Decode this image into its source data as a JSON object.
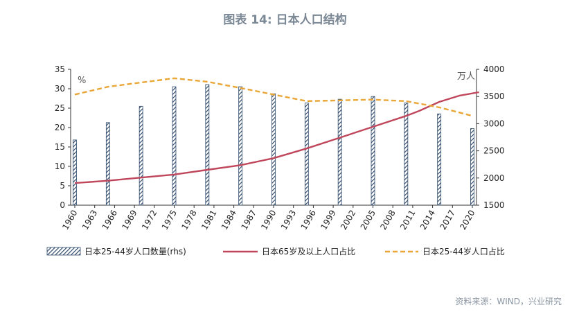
{
  "title": "图表 14: 日本人口结构",
  "source": "资料来源：WIND，兴业研究",
  "chart_data": {
    "type": "bar+line",
    "title": "图表 14: 日本人口结构",
    "left_unit": "%",
    "right_unit": "万人",
    "ylim_left": [
      0,
      35
    ],
    "ylim_right": [
      1500,
      4000
    ],
    "left_ticks": [
      0,
      5,
      10,
      15,
      20,
      25,
      30,
      35
    ],
    "right_ticks": [
      1500,
      2000,
      2500,
      3000,
      3500,
      4000
    ],
    "x_range": [
      1960,
      2020
    ],
    "x_ticks": [
      "1960",
      "1963",
      "1966",
      "1969",
      "1972",
      "1975",
      "1978",
      "1981",
      "1984",
      "1987",
      "1990",
      "1993",
      "1996",
      "1999",
      "2002",
      "2005",
      "2008",
      "2011",
      "2014",
      "2017",
      "2020"
    ],
    "legend_position": "bottom",
    "colors": {
      "bars": "#2f4a6b",
      "line_65": "#c0475b",
      "line_2544": "#eaa637"
    },
    "series": [
      {
        "name": "日本25-44岁人口数量(rhs)",
        "type": "bar",
        "axis": "right",
        "x": [
          1960,
          1965,
          1970,
          1975,
          1980,
          1985,
          1990,
          1995,
          2000,
          2005,
          2010,
          2015,
          2020
        ],
        "values": [
          2700,
          3020,
          3320,
          3680,
          3720,
          3680,
          3550,
          3380,
          3450,
          3500,
          3380,
          3180,
          2910
        ]
      },
      {
        "name": "日本65岁及以上人口占比",
        "type": "line",
        "axis": "left",
        "x": [
          1960,
          1965,
          1970,
          1975,
          1980,
          1985,
          1990,
          1995,
          2000,
          2005,
          2010,
          2012,
          2015,
          2018,
          2021
        ],
        "values": [
          5.7,
          6.3,
          7.1,
          7.9,
          9.1,
          10.3,
          12.1,
          14.6,
          17.4,
          20.2,
          23.0,
          24.3,
          26.6,
          28.2,
          29.1
        ]
      },
      {
        "name": "日本25-44岁人口占比",
        "type": "line",
        "axis": "left",
        "x": [
          1960,
          1965,
          1970,
          1975,
          1980,
          1985,
          1990,
          1995,
          2000,
          2005,
          2010,
          2015,
          2020
        ],
        "values": [
          28.5,
          30.5,
          31.6,
          32.7,
          31.8,
          30.2,
          28.5,
          26.8,
          27.0,
          27.2,
          26.8,
          25.2,
          23.0
        ]
      }
    ]
  }
}
